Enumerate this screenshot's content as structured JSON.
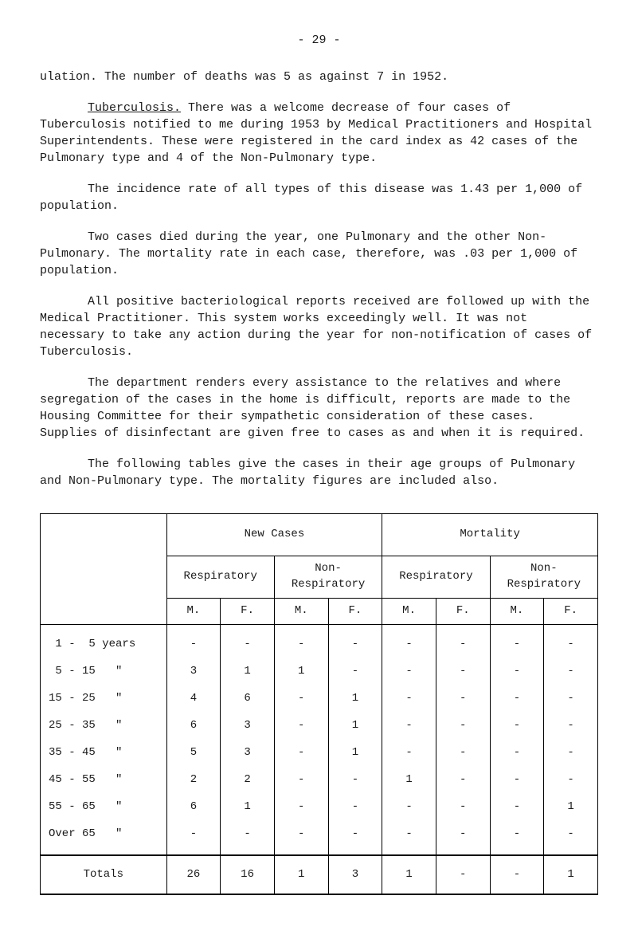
{
  "page_number": "- 29 -",
  "paragraphs": {
    "p1_pre": "ulation.",
    "p1_rest": "    The number of deaths was 5 as against 7 in 1952.",
    "p2_label": "Tuberculosis.",
    "p2_rest": "    There was a welcome decrease of four cases of Tuberculosis notified to me during 1953 by Medical Practitioners and Hospital Superintendents.    These were registered in the card index as 42 cases of the Pulmonary type and 4 of the Non-Pulmonary type.",
    "p3": "The incidence rate of all types of this disease was 1.43 per 1,000 of population.",
    "p4": "Two cases died during the year, one Pulmonary and the other Non-Pulmonary.    The mortality rate in each case, therefore, was .03 per 1,000 of population.",
    "p5": "All positive bacteriological reports received are followed up with the Medical Practitioner.    This system works exceedingly well.    It was not necessary to take any action during the year for non-notification of cases of Tuberculosis.",
    "p6": "The department renders every assistance to the relatives and where segregation of the cases in the home is difficult, reports are made to the Housing Committee for their sympathetic consideration of these cases.    Supplies of disinfectant are given free to cases as and when it is required.",
    "p7": "The following tables give the cases in their age groups of Pulmonary and Non-Pulmonary type.    The mortality figures are included also."
  },
  "table": {
    "header_main_1": "New Cases",
    "header_main_2": "Mortality",
    "header_sub_1": "Respiratory",
    "header_sub_2": "Non-\nRespiratory",
    "header_sub_3": "Respiratory",
    "header_sub_4": "Non-\nRespiratory",
    "col_m": "M.",
    "col_f": "F.",
    "rows": [
      {
        "label": " 1 -  5 years",
        "cells": [
          "-",
          "-",
          "-",
          "-",
          "-",
          "-",
          "-",
          "-"
        ]
      },
      {
        "label": " 5 - 15   \"",
        "cells": [
          "3",
          "1",
          "1",
          "-",
          "-",
          "-",
          "-",
          "-"
        ]
      },
      {
        "label": "15 - 25   \"",
        "cells": [
          "4",
          "6",
          "-",
          "1",
          "-",
          "-",
          "-",
          "-"
        ]
      },
      {
        "label": "25 - 35   \"",
        "cells": [
          "6",
          "3",
          "-",
          "1",
          "-",
          "-",
          "-",
          "-"
        ]
      },
      {
        "label": "35 - 45   \"",
        "cells": [
          "5",
          "3",
          "-",
          "1",
          "-",
          "-",
          "-",
          "-"
        ]
      },
      {
        "label": "45 - 55   \"",
        "cells": [
          "2",
          "2",
          "-",
          "-",
          "1",
          "-",
          "-",
          "-"
        ]
      },
      {
        "label": "55 - 65   \"",
        "cells": [
          "6",
          "1",
          "-",
          "-",
          "-",
          "-",
          "-",
          "1"
        ]
      },
      {
        "label": "Over 65   \"",
        "cells": [
          "-",
          "-",
          "-",
          "-",
          "-",
          "-",
          "-",
          "-"
        ]
      }
    ],
    "totals_label": "Totals",
    "totals": [
      "26",
      "16",
      "1",
      "3",
      "1",
      "-",
      "-",
      "1"
    ]
  }
}
